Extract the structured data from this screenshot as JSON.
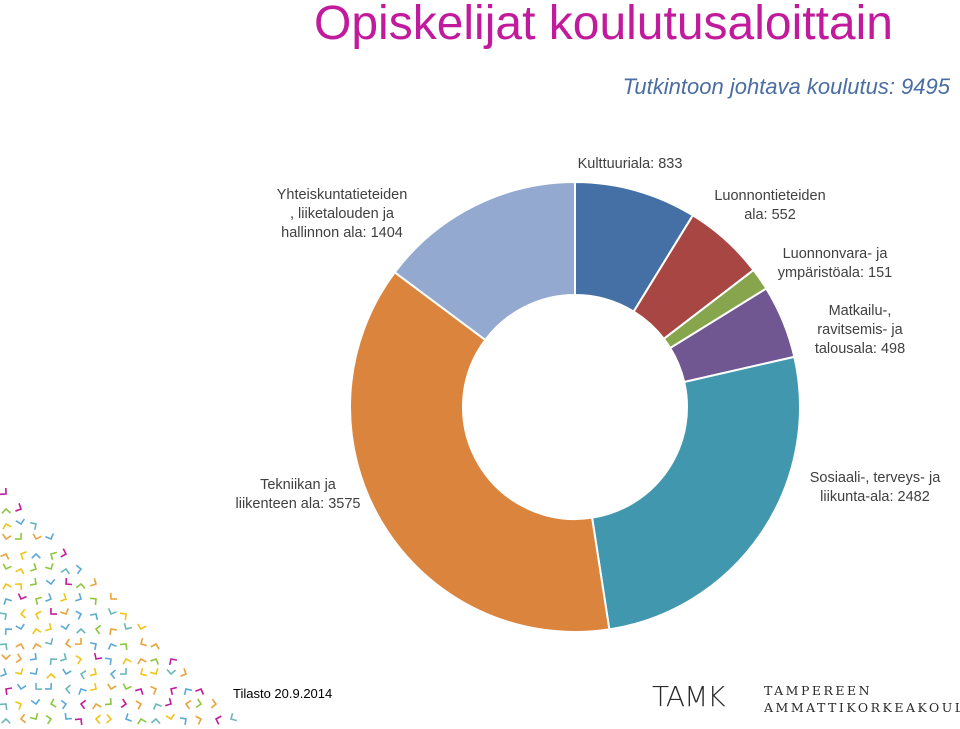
{
  "title": "Opiskelijat koulutusaloittain",
  "subtitle": "Tutkintoon johtava koulutus: 9495",
  "footer": {
    "date": "Tilasto 20.9.2014",
    "logo_mark": "TAMK",
    "logo_line1": "TAMPEREEN",
    "logo_line2": "AMMATTIKORKEAKOULU"
  },
  "chart_data": {
    "type": "pie",
    "variant": "donut",
    "title": "Opiskelijat koulutusaloittain",
    "subtitle": "Tutkintoon johtava koulutus: 9495",
    "total": 9495,
    "slices": [
      {
        "label": "Kulttuuriala: 833",
        "value": 833,
        "color": "#4470a5"
      },
      {
        "label": "Luonnontieteiden ala: 552",
        "value": 552,
        "color": "#a84644"
      },
      {
        "label": "Luonnonvara- ja ympäristöala: 151",
        "value": 151,
        "color": "#86a54d"
      },
      {
        "label": "Matkailu-, ravitsemis- ja talousala: 498",
        "value": 498,
        "color": "#705791"
      },
      {
        "label": "Sosiaali-, terveys- ja liikunta-ala: 2482",
        "value": 2482,
        "color": "#4198ae"
      },
      {
        "label": "Tekniikan ja liikenteen ala: 3575",
        "value": 3575,
        "color": "#db843d"
      },
      {
        "label": "Yhteiskuntatieteiden, liiketalouden ja hallinnon ala: 1404",
        "value": 1404,
        "color": "#94a9cf"
      }
    ],
    "legend": "none"
  },
  "label_lines": {
    "kult": [
      "Kulttuuriala: 833"
    ],
    "luonnontiet": [
      "Luonnontieteiden",
      "ala: 552"
    ],
    "luonnonvara": [
      "Luonnonvara- ja",
      "ympäristöala: 151"
    ],
    "matkailu": [
      "Matkailu-,",
      "ravitsemis- ja",
      "talousala: 498"
    ],
    "sosiaali": [
      "Sosiaali-, terveys- ja",
      "liikunta-ala: 2482"
    ],
    "tekniikka": [
      "Tekniikan ja",
      "liikenteen ala: 3575"
    ],
    "yhteis": [
      "Yhteiskuntatieteiden",
      ", liiketalouden ja",
      "hallinnon ala: 1404"
    ]
  }
}
